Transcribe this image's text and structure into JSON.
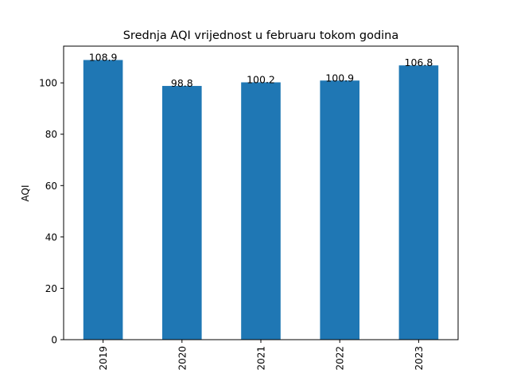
{
  "chart_data": {
    "type": "bar",
    "title": "Srednja AQI vrijednost u februaru tokom godina",
    "xlabel": "",
    "ylabel": "AQI",
    "categories": [
      "2019",
      "2020",
      "2021",
      "2022",
      "2023"
    ],
    "values": [
      108.9,
      98.8,
      100.2,
      100.9,
      106.8
    ],
    "value_labels": [
      "108.9",
      "98.8",
      "100.2",
      "100.9",
      "106.8"
    ],
    "ylim": [
      0,
      114.3
    ],
    "yticks": [
      0,
      20,
      40,
      60,
      80,
      100
    ],
    "bar_color": "#1f77b4",
    "grid": false,
    "x_tick_rotation": "vertical"
  }
}
